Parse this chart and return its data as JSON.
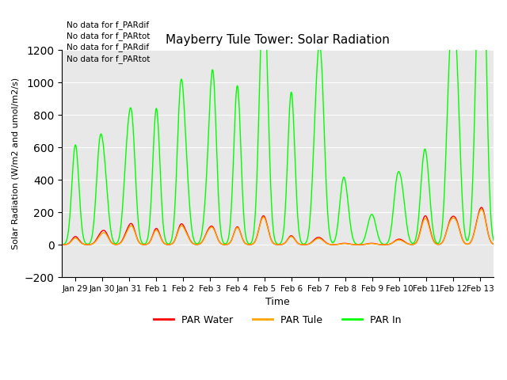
{
  "title": "Mayberry Tule Tower: Solar Radiation",
  "xlabel": "Time",
  "ylabel": "Solar Radiation (W/m2 and umol/m2/s)",
  "ylim": [
    -200,
    1200
  ],
  "yticks": [
    -200,
    0,
    200,
    400,
    600,
    800,
    1000,
    1200
  ],
  "bg_color": "#e8e8e8",
  "fig_color": "#ffffff",
  "no_data_texts": [
    "No data for f_PARdif",
    "No data for f_PARtot",
    "No data for f_PARdif",
    "No data for f_PARtot"
  ],
  "legend_items": [
    {
      "label": "PAR Water",
      "color": "#ff0000"
    },
    {
      "label": "PAR Tule",
      "color": "#ffa500"
    },
    {
      "label": "PAR In",
      "color": "#00ff00"
    }
  ],
  "xtick_labels": [
    "Jan 29",
    "Jan 30",
    "Jan 31",
    "Feb 1",
    "Feb 2",
    "Feb 3",
    "Feb 4",
    "Feb 5",
    "Feb 6",
    "Feb 7",
    "Feb 8",
    "Feb 9",
    "Feb 10",
    "Feb 11",
    "Feb 12",
    "Feb 13"
  ],
  "day_profiles": [
    [
      0,
      0.5,
      615,
      50,
      40
    ],
    [
      1,
      0.4,
      555,
      45,
      35
    ],
    [
      1,
      0.6,
      325,
      70,
      60
    ],
    [
      2,
      0.4,
      430,
      55,
      45
    ],
    [
      2,
      0.6,
      670,
      110,
      100
    ],
    [
      3,
      0.5,
      840,
      100,
      90
    ],
    [
      4,
      0.4,
      895,
      110,
      100
    ],
    [
      4,
      0.6,
      350,
      50,
      45
    ],
    [
      5,
      0.4,
      260,
      60,
      55
    ],
    [
      5,
      0.6,
      990,
      90,
      85
    ],
    [
      6,
      0.5,
      980,
      110,
      105
    ],
    [
      7,
      0.4,
      910,
      110,
      105
    ],
    [
      7,
      0.55,
      945,
      100,
      95
    ],
    [
      8,
      0.5,
      940,
      55,
      50
    ],
    [
      9,
      0.4,
      510,
      25,
      20
    ],
    [
      9,
      0.55,
      600,
      20,
      18
    ],
    [
      9,
      0.65,
      500,
      15,
      12
    ],
    [
      10,
      0.4,
      300,
      5,
      4
    ],
    [
      10,
      0.55,
      185,
      5,
      4
    ],
    [
      11,
      0.4,
      100,
      5,
      4
    ],
    [
      11,
      0.55,
      120,
      5,
      4
    ],
    [
      12,
      0.4,
      300,
      20,
      18
    ],
    [
      12,
      0.55,
      160,
      15,
      12
    ],
    [
      12,
      0.65,
      150,
      10,
      8
    ],
    [
      13,
      0.4,
      410,
      110,
      100
    ],
    [
      13,
      0.55,
      280,
      100,
      90
    ],
    [
      14,
      0.35,
      740,
      90,
      85
    ],
    [
      14,
      0.5,
      650,
      80,
      75
    ],
    [
      14,
      0.65,
      730,
      95,
      90
    ],
    [
      15,
      0.4,
      870,
      95,
      90
    ],
    [
      15,
      0.55,
      1080,
      110,
      105
    ],
    [
      15,
      0.65,
      860,
      95,
      90
    ]
  ]
}
